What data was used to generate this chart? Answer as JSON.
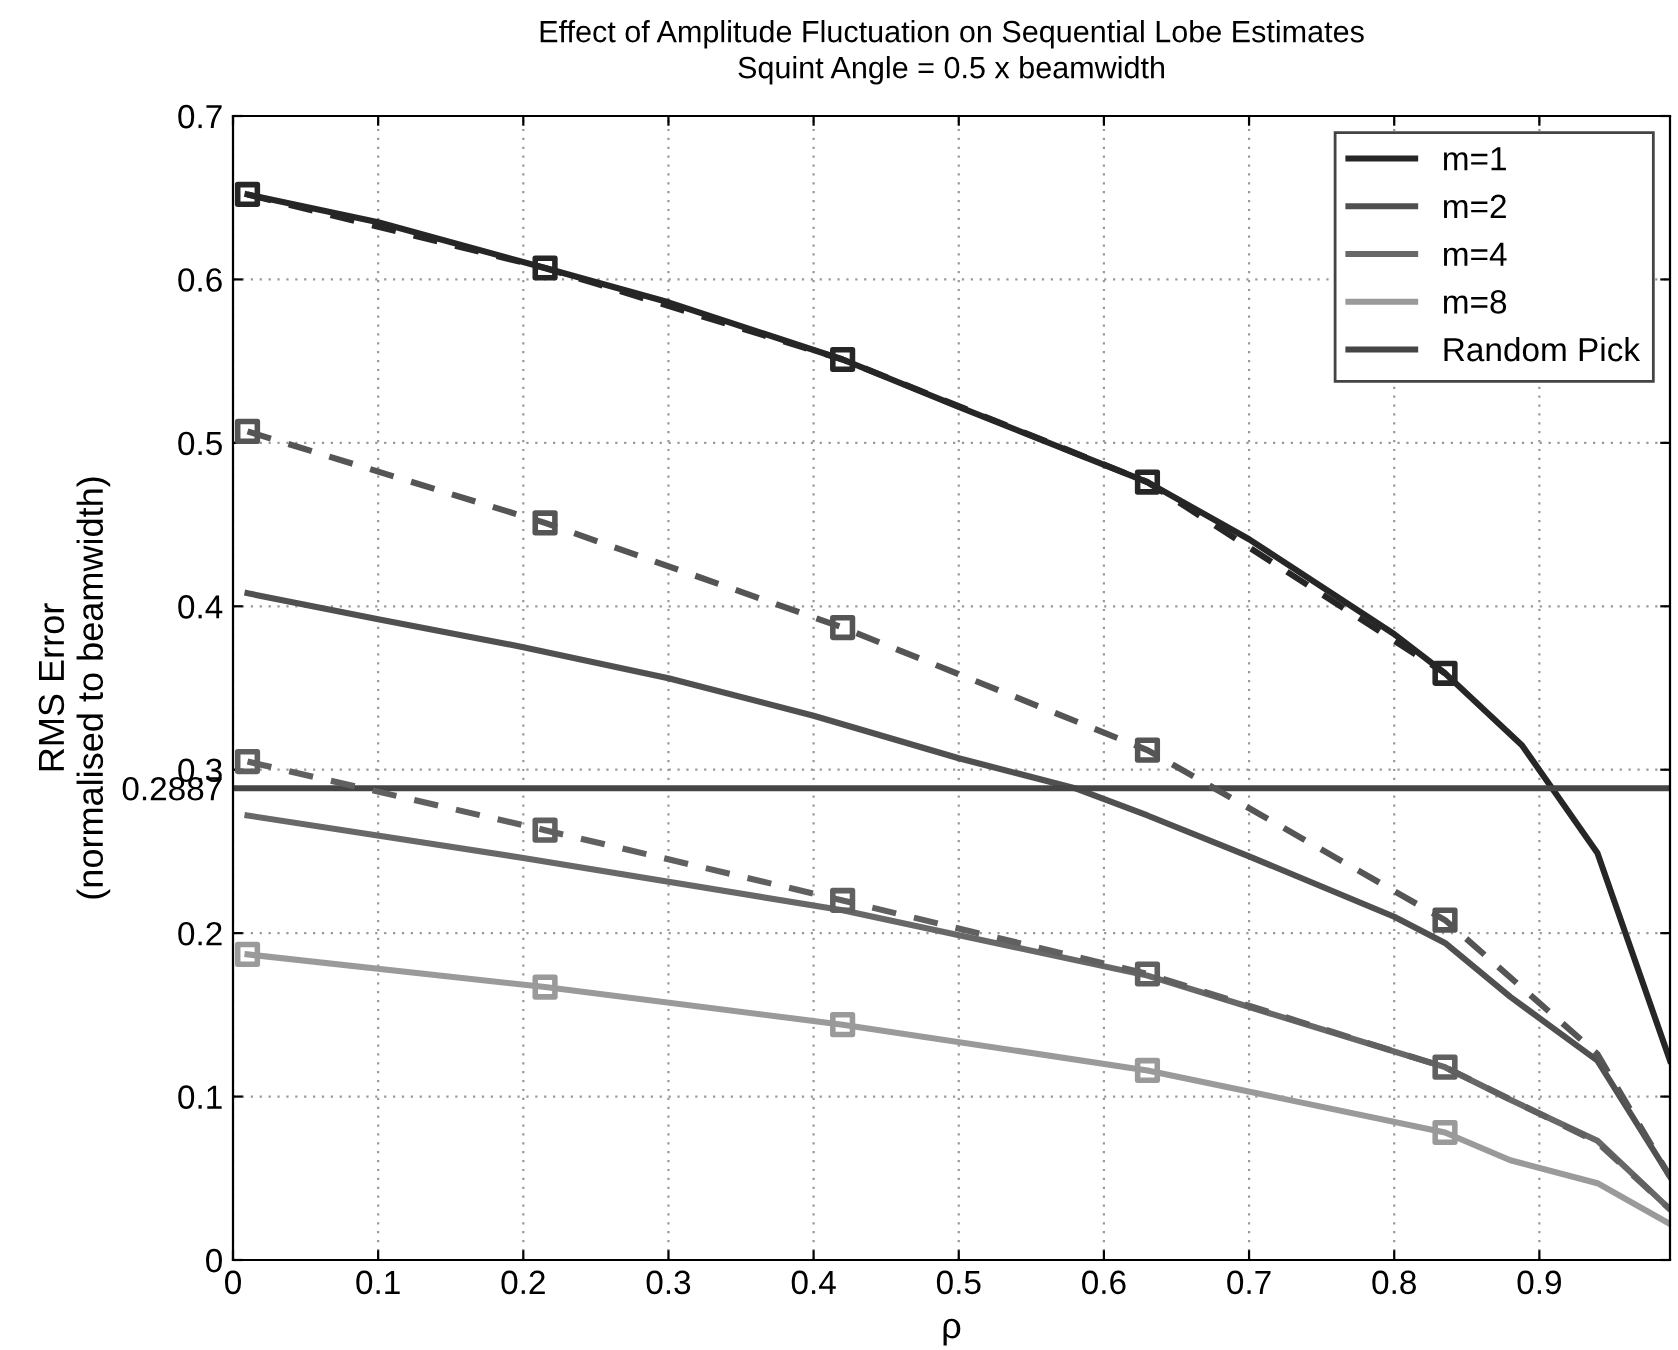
{
  "chart_data": {
    "type": "line",
    "title": "Effect of Amplitude Fluctuation on Sequential Lobe Estimates",
    "subtitle": "Squint Angle = 0.5 x beamwidth",
    "xlabel": "ρ",
    "ylabel": "RMS Error\n(normalised to beamwidth)",
    "xlim": [
      0,
      0.99
    ],
    "ylim": [
      0,
      0.7
    ],
    "xticks": [
      0,
      0.1,
      0.2,
      0.3,
      0.4,
      0.5,
      0.6,
      0.7,
      0.8,
      0.9
    ],
    "yticks": [
      0,
      0.1,
      0.2,
      0.2887,
      0.3,
      0.4,
      0.5,
      0.6,
      0.7
    ],
    "grid": true,
    "legend": "top right",
    "marker": "none",
    "line_style": "solid",
    "series": [
      {
        "name": "m=1",
        "color": "#262626",
        "x": [
          0.01,
          0.1,
          0.215,
          0.3,
          0.42,
          0.5,
          0.63,
          0.7,
          0.8,
          0.835,
          0.888,
          0.94,
          0.99
        ],
        "values": [
          0.652,
          0.635,
          0.607,
          0.586,
          0.551,
          0.522,
          0.476,
          0.441,
          0.383,
          0.359,
          0.315,
          0.249,
          0.122
        ]
      },
      {
        "name": "m=2",
        "color": "#505050",
        "x": [
          0.01,
          0.1,
          0.2,
          0.3,
          0.4,
          0.5,
          0.58,
          0.63,
          0.7,
          0.8,
          0.835,
          0.88,
          0.94,
          0.99
        ],
        "values": [
          0.408,
          0.392,
          0.375,
          0.356,
          0.333,
          0.307,
          0.2887,
          0.272,
          0.247,
          0.21,
          0.194,
          0.161,
          0.122,
          0.051
        ]
      },
      {
        "name": "m=4",
        "color": "#686868",
        "x": [
          0.01,
          0.2,
          0.42,
          0.63,
          0.835,
          0.88,
          0.94,
          0.99
        ],
        "values": [
          0.272,
          0.246,
          0.214,
          0.174,
          0.118,
          0.098,
          0.073,
          0.031
        ]
      },
      {
        "name": "m=8",
        "color": "#9a9a9a",
        "x": [
          0.01,
          0.215,
          0.42,
          0.63,
          0.835,
          0.88,
          0.94,
          0.99
        ],
        "values": [
          0.187,
          0.167,
          0.144,
          0.116,
          0.078,
          0.061,
          0.047,
          0.022
        ]
      },
      {
        "name": "Random Pick",
        "color": "#454545",
        "x": [
          0,
          0.99
        ],
        "values": [
          0.2887,
          0.2887
        ]
      },
      {
        "color": "#262626",
        "line_style": "dashed",
        "x": [
          0.01,
          0.215,
          0.42,
          0.63,
          0.835
        ],
        "values": [
          0.652,
          0.607,
          0.551,
          0.476,
          0.359
        ]
      },
      {
        "color": "#555555",
        "line_style": "dashed",
        "x": [
          0.01,
          0.215,
          0.42,
          0.63,
          0.835,
          0.94,
          0.99
        ],
        "values": [
          0.507,
          0.451,
          0.387,
          0.312,
          0.208,
          0.126,
          0.051
        ]
      },
      {
        "color": "#606060",
        "line_style": "dashed",
        "x": [
          0.01,
          0.215,
          0.42,
          0.63,
          0.835,
          0.94,
          0.99
        ],
        "values": [
          0.305,
          0.263,
          0.22,
          0.175,
          0.118,
          0.072,
          0.031
        ]
      },
      {
        "type": "scatter",
        "marker": "square",
        "color": "#262626",
        "x": [
          0.01,
          0.215,
          0.42,
          0.63,
          0.835
        ],
        "values": [
          0.652,
          0.607,
          0.551,
          0.476,
          0.359
        ]
      },
      {
        "type": "scatter",
        "marker": "square",
        "color": "#555555",
        "x": [
          0.01,
          0.215,
          0.42,
          0.63,
          0.835
        ],
        "values": [
          0.507,
          0.451,
          0.387,
          0.312,
          0.208
        ]
      },
      {
        "type": "scatter",
        "marker": "square",
        "color": "#606060",
        "x": [
          0.01,
          0.215,
          0.42,
          0.63,
          0.835
        ],
        "values": [
          0.305,
          0.263,
          0.22,
          0.175,
          0.118
        ]
      },
      {
        "type": "scatter",
        "marker": "square",
        "color": "#9a9a9a",
        "x": [
          0.01,
          0.215,
          0.42,
          0.63,
          0.835
        ],
        "values": [
          0.187,
          0.167,
          0.144,
          0.116,
          0.078
        ]
      }
    ]
  }
}
